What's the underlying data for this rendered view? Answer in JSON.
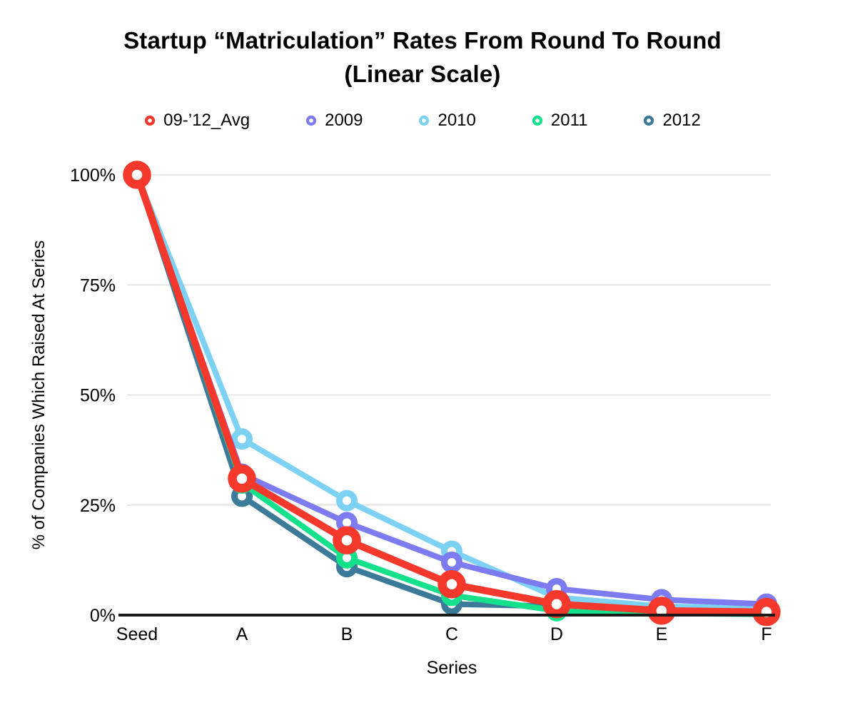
{
  "title": {
    "line1": "Startup “Matriculation” Rates From Round To Round",
    "line2": "(Linear Scale)"
  },
  "chart_data": {
    "type": "line",
    "title": "Startup “Matriculation” Rates From Round To Round (Linear Scale)",
    "xlabel": "Series",
    "ylabel": "% of Companies Which Raised At Series",
    "categories": [
      "Seed",
      "A",
      "B",
      "C",
      "D",
      "E",
      "F"
    ],
    "yticks": [
      {
        "value": 0,
        "label": "0%"
      },
      {
        "value": 25,
        "label": "25%"
      },
      {
        "value": 50,
        "label": "50%"
      },
      {
        "value": 75,
        "label": "75%"
      },
      {
        "value": 100,
        "label": "100%"
      }
    ],
    "ylim": [
      0,
      100
    ],
    "grid": true,
    "legend_position": "top",
    "marker_style": "open-circle",
    "series": [
      {
        "name": "09-’12_Avg",
        "color": "#F5382C",
        "emphasized": true,
        "values": [
          100,
          31,
          17,
          7,
          2.5,
          1,
          0.7
        ]
      },
      {
        "name": "2009",
        "color": "#7C7CF0",
        "emphasized": false,
        "values": [
          100,
          32,
          21,
          12,
          6,
          3.5,
          2.5
        ]
      },
      {
        "name": "2010",
        "color": "#7DD2F4",
        "emphasized": false,
        "values": [
          100,
          40,
          26,
          14.5,
          4,
          2,
          1.5
        ]
      },
      {
        "name": "2011",
        "color": "#15E18C",
        "emphasized": false,
        "values": [
          100,
          30,
          13,
          4.5,
          1,
          0.4,
          0.2
        ]
      },
      {
        "name": "2012",
        "color": "#3B7B99",
        "emphasized": false,
        "values": [
          100,
          27,
          11,
          2.5,
          2,
          0.7,
          0.5
        ]
      }
    ],
    "colors": {
      "gridline": "#E1E1E1",
      "axis": "#1A1A1A",
      "text": "#000000",
      "background": "#FFFFFF"
    }
  }
}
